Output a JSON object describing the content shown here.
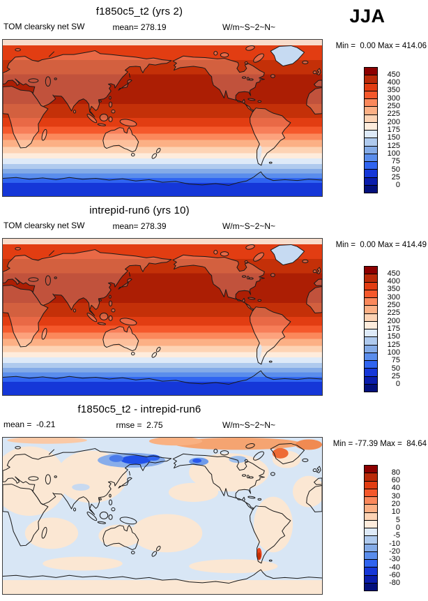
{
  "season": "JJA",
  "palette": [
    "#8C0000",
    "#BA2A09",
    "#E23D12",
    "#F5582B",
    "#FB885B",
    "#FCB085",
    "#FDD3B4",
    "#FEECDC",
    "#DEEAF8",
    "#AFCAEE",
    "#84ABE7",
    "#5A8DEC",
    "#2F64F0",
    "#1537D8",
    "#0A1DAC",
    "#03107C"
  ],
  "outline_color": "#1a1a1a",
  "diff_base_color": "#D8E6F5",
  "diff_land_color": "#FBE7D3",
  "greenland_fill": "#C6DAF2",
  "panels": [
    {
      "title": "f1850c5_t2 (yrs 2)",
      "left_label": "TOM clearsky net SW",
      "center_label": "mean= 278.19",
      "units": "W/m~S~2~N~",
      "minmax": "Min =  0.00 Max = 414.06",
      "colorbar_ticks": [
        "450",
        "400",
        "350",
        "300",
        "250",
        "225",
        "200",
        "175",
        "150",
        "125",
        "100",
        "75",
        "50",
        "25",
        "0"
      ]
    },
    {
      "title": "intrepid-run6 (yrs 10)",
      "left_label": "TOM clearsky net SW",
      "center_label": "mean= 278.39",
      "units": "W/m~S~2~N~",
      "minmax": "Min =  0.00 Max = 414.49",
      "colorbar_ticks": [
        "450",
        "400",
        "350",
        "300",
        "250",
        "225",
        "200",
        "175",
        "150",
        "125",
        "100",
        "75",
        "50",
        "25",
        "0"
      ]
    },
    {
      "title": "f1850c5_t2 - intrepid-run6",
      "left_label": "mean =  -0.21",
      "center_label": "rmse =  2.75",
      "units": "W/m~S~2~N~",
      "minmax": "Min = -77.39 Max =  84.64",
      "colorbar_ticks": [
        "80",
        "60",
        "40",
        "30",
        "20",
        "10",
        "5",
        "0",
        "-5",
        "-10",
        "-20",
        "-30",
        "-40",
        "-60",
        "-80"
      ]
    }
  ],
  "chart_data": {
    "type": "heatmap",
    "title": "TOM clearsky net SW comparison, JJA season",
    "projection": "cylindrical equidistant, Pacific-centered (0E-360E)",
    "units": "W/m^2",
    "legend_position": "right",
    "panels": [
      {
        "name": "f1850c5_t2 (yrs 2)",
        "mean": 278.19,
        "min": 0.0,
        "max": 414.06,
        "levels": [
          0,
          25,
          50,
          75,
          100,
          125,
          150,
          175,
          200,
          225,
          250,
          300,
          350,
          400,
          450
        ]
      },
      {
        "name": "intrepid-run6 (yrs 10)",
        "mean": 278.39,
        "min": 0.0,
        "max": 414.49,
        "levels": [
          0,
          25,
          50,
          75,
          100,
          125,
          150,
          175,
          200,
          225,
          250,
          300,
          350,
          400,
          450
        ]
      },
      {
        "name": "f1850c5_t2 - intrepid-run6 (difference)",
        "mean": -0.21,
        "rmse": 2.75,
        "min": -77.39,
        "max": 84.64,
        "levels": [
          -80,
          -60,
          -40,
          -30,
          -20,
          -10,
          -5,
          0,
          5,
          10,
          20,
          30,
          40,
          60,
          80
        ]
      }
    ],
    "zonal_bands": [
      {
        "to": 3.5,
        "c": "#F8DCCB"
      },
      {
        "to": 13,
        "c": "#E23D12"
      },
      {
        "to": 22,
        "c": "#C43008"
      },
      {
        "to": 41,
        "c": "#AC1E04"
      },
      {
        "to": 50,
        "c": "#C43008"
      },
      {
        "to": 55.5,
        "c": "#E23D12"
      },
      {
        "to": 60,
        "c": "#F5582B"
      },
      {
        "to": 64,
        "c": "#FB885B"
      },
      {
        "to": 68.5,
        "c": "#FCB085"
      },
      {
        "to": 72.5,
        "c": "#FDD3B4"
      },
      {
        "to": 76,
        "c": "#FEECDC"
      },
      {
        "to": 79.5,
        "c": "#DEEAF8"
      },
      {
        "to": 82.5,
        "c": "#AFCAEE"
      },
      {
        "to": 85.5,
        "c": "#84ABE7"
      },
      {
        "to": 88.5,
        "c": "#5A8DEC"
      },
      {
        "to": 91.5,
        "c": "#2F64F0"
      },
      {
        "to": 100,
        "c": "#1537D8"
      }
    ],
    "difference_features": [
      "strong negative (blue) anomaly over Sea of Okhotsk / NE Siberia and Gulf of Alaska",
      "positive (orange) anomaly along Arctic ocean margin and near Greenland",
      "strong positive (red) spot over Patagonia, southern South America",
      "weak positive over land, weak negative over oceans elsewhere"
    ]
  }
}
